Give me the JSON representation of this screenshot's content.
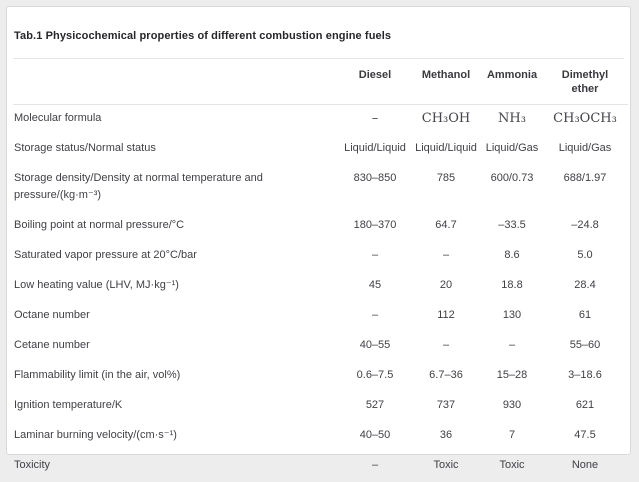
{
  "title": "Tab.1 Physicochemical properties of different combustion engine fuels",
  "colors": {
    "page_background": "#ededed",
    "panel_background": "#ffffff",
    "panel_border": "#d9d9d9",
    "divider": "#e4e4e4",
    "text": "#3f3f46",
    "title_text": "#26262b"
  },
  "table": {
    "columns": [
      "",
      "Diesel",
      "Methanol",
      "Ammonia",
      "Dimethyl ether"
    ],
    "rows": [
      {
        "label": "Molecular formula",
        "style": "formula",
        "values": [
          "–",
          "CH₃OH",
          "NH₃",
          "CH₃OCH₃"
        ]
      },
      {
        "label": "Storage status/Normal status",
        "values": [
          "Liquid/Liquid",
          "Liquid/Liquid",
          "Liquid/Gas",
          "Liquid/Gas"
        ]
      },
      {
        "label": "Storage density/Density at normal temperature and pressure/(kg·m⁻³)",
        "values": [
          "830–850",
          "785",
          "600/0.73",
          "688/1.97"
        ]
      },
      {
        "label": "Boiling point at normal pressure/°C",
        "values": [
          "180–370",
          "64.7",
          "–33.5",
          "–24.8"
        ]
      },
      {
        "label": "Saturated vapor pressure at 20°C/bar",
        "values": [
          "–",
          "–",
          "8.6",
          "5.0"
        ]
      },
      {
        "label": "Low heating value (LHV, MJ·kg⁻¹)",
        "values": [
          "45",
          "20",
          "18.8",
          "28.4"
        ]
      },
      {
        "label": "Octane number",
        "values": [
          "–",
          "112",
          "130",
          "61"
        ]
      },
      {
        "label": "Cetane number",
        "values": [
          "40–55",
          "–",
          "–",
          "55–60"
        ]
      },
      {
        "label": "Flammability limit (in the air, vol%)",
        "values": [
          "0.6–7.5",
          "6.7–36",
          "15–28",
          "3–18.6"
        ]
      },
      {
        "label": "Ignition temperature/K",
        "values": [
          "527",
          "737",
          "930",
          "621"
        ]
      },
      {
        "label": "Laminar burning velocity/(cm·s⁻¹)",
        "values": [
          "40–50",
          "36",
          "7",
          "47.5"
        ]
      },
      {
        "label": "Toxicity",
        "values": [
          "–",
          "Toxic",
          "Toxic",
          "None"
        ]
      }
    ]
  }
}
